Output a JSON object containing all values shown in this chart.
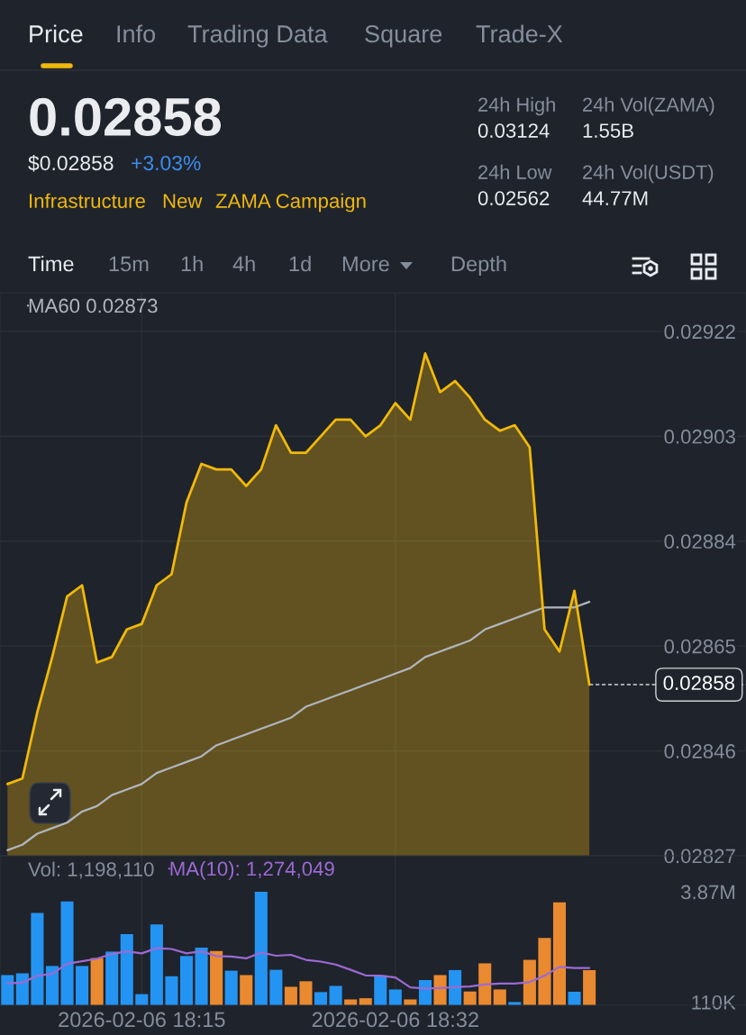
{
  "chart_data": [
    {
      "type": "line",
      "annotations": [
        "Price",
        "Info",
        "Trading Data",
        "Square",
        "Trade-X",
        "0.02858",
        "$0.02858",
        "+3.03%",
        "Infrastructure",
        "New",
        "ZAMA Campaign",
        "24h High",
        "0.03124",
        "24h Vol(ZAMA)",
        "1.55B",
        "24h Low",
        "0.02562",
        "24h Vol(USDT)",
        "44.77M",
        "Time",
        "15m",
        "1h",
        "4h",
        "1d",
        "More",
        "Depth"
      ],
      "x": [
        "2026-02-06T18:06",
        "2026-02-06T18:07",
        "2026-02-06T18:08",
        "2026-02-06T18:09",
        "2026-02-06T18:10",
        "2026-02-06T18:11",
        "2026-02-06T18:12",
        "2026-02-06T18:13",
        "2026-02-06T18:14",
        "2026-02-06T18:15",
        "2026-02-06T18:16",
        "2026-02-06T18:17",
        "2026-02-06T18:18",
        "2026-02-06T18:19",
        "2026-02-06T18:20",
        "2026-02-06T18:21",
        "2026-02-06T18:22",
        "2026-02-06T18:23",
        "2026-02-06T18:24",
        "2026-02-06T18:25",
        "2026-02-06T18:26",
        "2026-02-06T18:27",
        "2026-02-06T18:28",
        "2026-02-06T18:29",
        "2026-02-06T18:30",
        "2026-02-06T18:31",
        "2026-02-06T18:32",
        "2026-02-06T18:33",
        "2026-02-06T18:34",
        "2026-02-06T18:35",
        "2026-02-06T18:36",
        "2026-02-06T18:37",
        "2026-02-06T18:38",
        "2026-02-06T18:39",
        "2026-02-06T18:40",
        "2026-02-06T18:41",
        "2026-02-06T18:42",
        "2026-02-06T18:43",
        "2026-02-06T18:44",
        "2026-02-06T18:45"
      ],
      "series": [
        {
          "type": "area",
          "color": "#f0b90b",
          "values": [
            0.0284,
            0.02841,
            0.02853,
            0.02863,
            0.02874,
            0.02876,
            0.02862,
            0.02863,
            0.02868,
            0.02869,
            0.02876,
            0.02878,
            0.02891,
            0.02898,
            0.02897,
            0.02897,
            0.02894,
            0.02897,
            0.02905,
            0.029,
            0.029,
            0.02903,
            0.02906,
            0.02906,
            0.02903,
            0.02905,
            0.02909,
            0.02906,
            0.02918,
            0.02911,
            0.02913,
            0.0291,
            0.02906,
            0.02904,
            0.02905,
            0.02901,
            0.02868,
            0.02864,
            0.02875,
            0.02858
          ]
        },
        {
          "name": "MA60 0.02873",
          "color": "#b0b6be",
          "values": [
            0.02828,
            0.02829,
            0.02831,
            0.02832,
            0.02833,
            0.02835,
            0.02836,
            0.02838,
            0.02839,
            0.0284,
            0.02842,
            0.02843,
            0.02844,
            0.02845,
            0.02847,
            0.02848,
            0.02849,
            0.0285,
            0.02851,
            0.02852,
            0.02854,
            0.02855,
            0.02856,
            0.02857,
            0.02858,
            0.02859,
            0.0286,
            0.02861,
            0.02863,
            0.02864,
            0.02865,
            0.02866,
            0.02868,
            0.02869,
            0.0287,
            0.02871,
            0.02872,
            0.02872,
            0.02872,
            0.02873
          ]
        }
      ],
      "xlim": [
        "2026-02-06T18:05:30",
        "2026-02-06T18:55:30"
      ],
      "xticks": [
        {
          "value": "2026-02-06T18:15",
          "label": null
        },
        {
          "value": "2026-02-06T18:32",
          "label": null
        }
      ],
      "ylim": [
        0.02827,
        0.02929
      ],
      "yticks": [
        0.02827,
        0.02846,
        0.02865,
        0.02884,
        0.02903,
        0.02922
      ],
      "ref_lines": [
        {
          "axis": "y",
          "value": 0.02858,
          "label": "0.02858",
          "color": "#d0d3d8",
          "line_style": "dashed"
        }
      ],
      "grid": true,
      "legend": "top left",
      "tick_labels": "y"
    },
    {
      "type": "bar",
      "annotations": [
        "Vol: 1,198,110"
      ],
      "x": [
        "2026-02-06T18:06",
        "2026-02-06T18:07",
        "2026-02-06T18:08",
        "2026-02-06T18:09",
        "2026-02-06T18:10",
        "2026-02-06T18:11",
        "2026-02-06T18:12",
        "2026-02-06T18:13",
        "2026-02-06T18:14",
        "2026-02-06T18:15",
        "2026-02-06T18:16",
        "2026-02-06T18:17",
        "2026-02-06T18:18",
        "2026-02-06T18:19",
        "2026-02-06T18:20",
        "2026-02-06T18:21",
        "2026-02-06T18:22",
        "2026-02-06T18:23",
        "2026-02-06T18:24",
        "2026-02-06T18:25",
        "2026-02-06T18:26",
        "2026-02-06T18:27",
        "2026-02-06T18:28",
        "2026-02-06T18:29",
        "2026-02-06T18:30",
        "2026-02-06T18:31",
        "2026-02-06T18:32",
        "2026-02-06T18:33",
        "2026-02-06T18:34",
        "2026-02-06T18:35",
        "2026-02-06T18:36",
        "2026-02-06T18:37",
        "2026-02-06T18:38",
        "2026-02-06T18:39",
        "2026-02-06T18:40",
        "2026-02-06T18:41",
        "2026-02-06T18:42",
        "2026-02-06T18:43",
        "2026-02-06T18:44",
        "2026-02-06T18:45"
      ],
      "series": [
        {
          "colors": [
            "#2494f2",
            "#2494f2",
            "#2494f2",
            "#2494f2",
            "#2494f2",
            "#2494f2",
            "#e98a30",
            "#2494f2",
            "#2494f2",
            "#2494f2",
            "#2494f2",
            "#2494f2",
            "#2494f2",
            "#2494f2",
            "#e98a30",
            "#2494f2",
            "#e98a30",
            "#2494f2",
            "#2494f2",
            "#e98a30",
            "#e98a30",
            "#2494f2",
            "#2494f2",
            "#e98a30",
            "#e98a30",
            "#2494f2",
            "#2494f2",
            "#e98a30",
            "#2494f2",
            "#e98a30",
            "#2494f2",
            "#e98a30",
            "#e98a30",
            "#e98a30",
            "#2494f2",
            "#e98a30",
            "#e98a30",
            "#e98a30",
            "#2494f2",
            "#e98a30"
          ],
          "values": [
            1030000,
            1090000,
            3150000,
            1340000,
            3540000,
            1340000,
            1610000,
            1830000,
            2430000,
            380000,
            2760000,
            990000,
            1680000,
            1970000,
            1850000,
            1180000,
            1030000,
            3870000,
            1210000,
            630000,
            820000,
            450000,
            660000,
            200000,
            240000,
            1020000,
            540000,
            200000,
            860000,
            1030000,
            1200000,
            470000,
            1430000,
            540000,
            110000,
            1550000,
            2300000,
            3510000,
            460000,
            1198110
          ]
        },
        {
          "type": "line",
          "name": "MA(10): 1,274,049",
          "color": "#9c6ad4",
          "values": [
            750000,
            770000,
            1010000,
            1070000,
            1420000,
            1500000,
            1590000,
            1750000,
            1840000,
            1770000,
            1950000,
            1920000,
            1770000,
            1840000,
            1680000,
            1660000,
            1600000,
            1800000,
            1690000,
            1720000,
            1550000,
            1490000,
            1390000,
            1210000,
            1020000,
            1010000,
            950000,
            610000,
            570000,
            590000,
            620000,
            640000,
            710000,
            740000,
            740000,
            790000,
            1010000,
            1310000,
            1270000,
            1274049
          ]
        }
      ],
      "xlim": [
        "2026-02-06T18:05:30",
        "2026-02-06T18:55:30"
      ],
      "xticks": [
        {
          "value": "2026-02-06T18:15",
          "label": "2026-02-06 18:15"
        },
        {
          "value": "2026-02-06T18:32",
          "label": "2026-02-06 18:32"
        }
      ],
      "ylim": [
        0,
        5100000
      ],
      "yticks": [
        {
          "value": 110000,
          "label": "110K"
        },
        {
          "value": 3870000,
          "label": "3.87M"
        }
      ],
      "grid": "x",
      "legend": "top left"
    }
  ]
}
